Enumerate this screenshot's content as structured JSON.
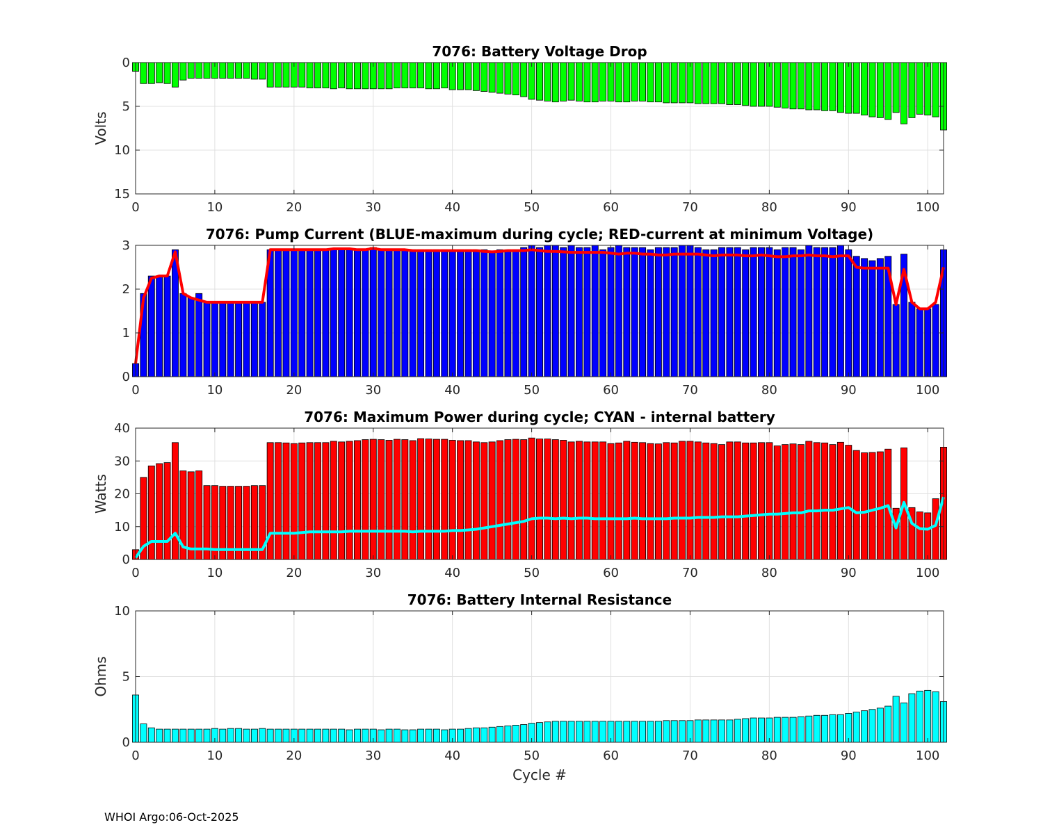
{
  "footer": "WHOI Argo:06-Oct-2025",
  "colors": {
    "green": "#00ff00",
    "blue": "#0000ff",
    "red": "#ff0000",
    "cyan": "#00ffff",
    "grid": "#e0e0e0",
    "axis": "#262626"
  },
  "chart_data": [
    {
      "type": "bar",
      "title": "7076: Battery Voltage Drop",
      "xlabel": "",
      "ylabel": "Volts",
      "xlim": [
        0,
        102
      ],
      "ylim": [
        0,
        15
      ],
      "y_reversed": true,
      "xticks": [
        0,
        10,
        20,
        30,
        40,
        50,
        60,
        70,
        80,
        90,
        100
      ],
      "yticks": [
        0,
        5,
        10,
        15
      ],
      "grid": true,
      "bar_color": "#00ff00",
      "x_start": 0,
      "values": [
        1.0,
        2.4,
        2.4,
        2.3,
        2.4,
        2.8,
        2.0,
        1.8,
        1.8,
        1.8,
        1.8,
        1.8,
        1.8,
        1.8,
        1.8,
        1.9,
        1.9,
        2.8,
        2.8,
        2.8,
        2.8,
        2.8,
        2.9,
        2.9,
        2.9,
        3.0,
        2.9,
        3.0,
        3.0,
        3.0,
        3.0,
        3.0,
        3.0,
        2.9,
        2.9,
        2.9,
        2.9,
        3.0,
        3.0,
        2.9,
        3.1,
        3.1,
        3.1,
        3.2,
        3.3,
        3.4,
        3.5,
        3.6,
        3.7,
        3.9,
        4.2,
        4.3,
        4.4,
        4.5,
        4.4,
        4.3,
        4.4,
        4.5,
        4.5,
        4.4,
        4.4,
        4.5,
        4.5,
        4.4,
        4.4,
        4.5,
        4.5,
        4.6,
        4.6,
        4.6,
        4.6,
        4.7,
        4.7,
        4.7,
        4.7,
        4.8,
        4.8,
        4.9,
        5.0,
        5.0,
        5.0,
        5.1,
        5.2,
        5.3,
        5.3,
        5.4,
        5.4,
        5.5,
        5.5,
        5.7,
        5.8,
        5.8,
        6.0,
        6.2,
        6.3,
        6.5,
        5.7,
        7.0,
        6.3,
        5.9,
        6.0,
        6.2,
        7.7
      ]
    },
    {
      "type": "bar",
      "title": "7076: Pump Current (BLUE-maximum during cycle; RED-current at minimum Voltage)",
      "xlabel": "",
      "ylabel": "",
      "xlim": [
        0,
        102
      ],
      "ylim": [
        0,
        3
      ],
      "xticks": [
        0,
        10,
        20,
        30,
        40,
        50,
        60,
        70,
        80,
        90,
        100
      ],
      "yticks": [
        0,
        1,
        2,
        3
      ],
      "grid": true,
      "bar_color": "#0000ff",
      "line_color": "#ff0000",
      "x_start": 0,
      "series": [
        {
          "values": [
            0.3,
            1.9,
            2.3,
            2.3,
            2.3,
            2.9,
            1.9,
            1.8,
            1.9,
            1.7,
            1.7,
            1.7,
            1.7,
            1.7,
            1.7,
            1.7,
            1.7,
            2.9,
            2.9,
            2.9,
            2.9,
            2.9,
            2.9,
            2.9,
            2.9,
            2.9,
            2.9,
            2.9,
            2.9,
            2.9,
            2.95,
            2.9,
            2.9,
            2.9,
            2.9,
            2.9,
            2.9,
            2.9,
            2.9,
            2.9,
            2.9,
            2.9,
            2.9,
            2.9,
            2.9,
            2.85,
            2.9,
            2.9,
            2.9,
            2.95,
            3.0,
            2.95,
            3.0,
            3.0,
            2.95,
            3.0,
            2.95,
            2.95,
            3.0,
            2.9,
            2.95,
            3.0,
            2.95,
            2.95,
            2.95,
            2.9,
            2.95,
            2.95,
            2.95,
            3.0,
            3.0,
            2.95,
            2.9,
            2.9,
            2.95,
            2.95,
            2.95,
            2.9,
            2.95,
            2.95,
            2.95,
            2.9,
            2.95,
            2.95,
            2.9,
            3.0,
            2.95,
            2.95,
            2.95,
            3.0,
            2.9,
            2.75,
            2.7,
            2.65,
            2.7,
            2.75,
            1.65,
            2.8,
            1.7,
            1.55,
            1.55,
            1.65,
            2.9
          ]
        },
        {
          "values": [
            0.3,
            1.8,
            2.25,
            2.3,
            2.3,
            2.85,
            1.9,
            1.8,
            1.75,
            1.7,
            1.7,
            1.7,
            1.7,
            1.7,
            1.7,
            1.7,
            1.7,
            2.9,
            2.9,
            2.9,
            2.9,
            2.9,
            2.9,
            2.9,
            2.9,
            2.92,
            2.92,
            2.92,
            2.9,
            2.9,
            2.93,
            2.9,
            2.9,
            2.9,
            2.9,
            2.88,
            2.88,
            2.88,
            2.88,
            2.88,
            2.88,
            2.88,
            2.88,
            2.88,
            2.86,
            2.85,
            2.86,
            2.88,
            2.88,
            2.88,
            2.9,
            2.88,
            2.86,
            2.86,
            2.85,
            2.84,
            2.84,
            2.84,
            2.84,
            2.84,
            2.82,
            2.8,
            2.82,
            2.82,
            2.8,
            2.8,
            2.78,
            2.78,
            2.8,
            2.8,
            2.8,
            2.8,
            2.78,
            2.76,
            2.78,
            2.78,
            2.78,
            2.76,
            2.76,
            2.78,
            2.76,
            2.74,
            2.74,
            2.76,
            2.76,
            2.78,
            2.76,
            2.76,
            2.74,
            2.76,
            2.76,
            2.5,
            2.48,
            2.48,
            2.48,
            2.48,
            1.65,
            2.45,
            1.7,
            1.55,
            1.55,
            1.7,
            2.5
          ]
        }
      ]
    },
    {
      "type": "bar",
      "title": "7076: Maximum Power during cycle; CYAN - internal battery",
      "xlabel": "",
      "ylabel": "Watts",
      "xlim": [
        0,
        102
      ],
      "ylim": [
        0,
        40
      ],
      "xticks": [
        0,
        10,
        20,
        30,
        40,
        50,
        60,
        70,
        80,
        90,
        100
      ],
      "yticks": [
        0,
        10,
        20,
        30,
        40
      ],
      "grid": true,
      "bar_color": "#ff0000",
      "line_color": "#00ffff",
      "x_start": 0,
      "series": [
        {
          "values": [
            3,
            25,
            28.5,
            29.2,
            29.5,
            35.6,
            27,
            26.7,
            27,
            22.5,
            22.5,
            22.3,
            22.3,
            22.3,
            22.3,
            22.5,
            22.5,
            35.6,
            35.6,
            35.5,
            35.3,
            35.5,
            35.6,
            35.6,
            35.6,
            36,
            35.8,
            36,
            36.2,
            36.5,
            36.6,
            36.5,
            36.3,
            36.6,
            36.5,
            36.2,
            36.8,
            36.7,
            36.6,
            36.6,
            36.3,
            36.2,
            36.2,
            35.8,
            35.6,
            35.8,
            36.2,
            36.5,
            36.6,
            36.5,
            37,
            36.7,
            36.7,
            36.5,
            36.3,
            35.8,
            36,
            35.8,
            35.8,
            35.8,
            35.3,
            35.5,
            36,
            35.7,
            35.6,
            35.3,
            35.2,
            35.6,
            35.5,
            36,
            36,
            35.8,
            35.5,
            35.3,
            35,
            35.8,
            35.8,
            35.5,
            35.5,
            35.6,
            35.6,
            34.6,
            35,
            35.2,
            35,
            36,
            35.6,
            35.5,
            35,
            35.7,
            34.8,
            33.2,
            32.5,
            32.6,
            32.8,
            33.6,
            15.6,
            34,
            15.8,
            14.5,
            14.2,
            18.5,
            34.2
          ]
        },
        {
          "values": [
            0.5,
            4,
            5.5,
            5.5,
            5.5,
            8,
            3.8,
            3.2,
            3.2,
            3.2,
            3,
            3,
            3,
            3,
            3,
            3,
            3,
            8,
            8,
            8,
            8,
            8.2,
            8.4,
            8.4,
            8.4,
            8.4,
            8.4,
            8.6,
            8.6,
            8.6,
            8.6,
            8.6,
            8.6,
            8.6,
            8.6,
            8.4,
            8.6,
            8.6,
            8.6,
            8.6,
            8.8,
            8.8,
            9,
            9.2,
            9.6,
            10,
            10.4,
            10.8,
            11.2,
            11.6,
            12.4,
            12.6,
            12.6,
            12.4,
            12.6,
            12.4,
            12.6,
            12.6,
            12.4,
            12.4,
            12.4,
            12.4,
            12.4,
            12.6,
            12.4,
            12.4,
            12.4,
            12.4,
            12.6,
            12.6,
            12.6,
            12.8,
            12.8,
            12.8,
            13,
            13,
            13,
            13.2,
            13.4,
            13.6,
            13.8,
            13.8,
            14,
            14.2,
            14.2,
            14.8,
            14.8,
            15,
            15,
            15.4,
            15.8,
            14.2,
            14.4,
            15,
            15.6,
            16.4,
            9.6,
            17.4,
            11,
            9.4,
            9.2,
            10.4,
            19
          ]
        }
      ]
    },
    {
      "type": "bar",
      "title": "7076: Battery Internal Resistance",
      "xlabel": "Cycle #",
      "ylabel": "Ohms",
      "xlim": [
        0,
        102
      ],
      "ylim": [
        0,
        10
      ],
      "xticks": [
        0,
        10,
        20,
        30,
        40,
        50,
        60,
        70,
        80,
        90,
        100
      ],
      "yticks": [
        0,
        5,
        10
      ],
      "grid": true,
      "bar_color": "#00ffff",
      "x_start": 0,
      "values": [
        3.6,
        1.4,
        1.1,
        1.0,
        1.0,
        1.0,
        1.0,
        1.0,
        1.0,
        1.0,
        1.05,
        1.0,
        1.05,
        1.05,
        1.0,
        1.0,
        1.05,
        1.0,
        1.0,
        1.0,
        1.0,
        1.0,
        1.0,
        1.0,
        1.0,
        1.0,
        1.0,
        0.95,
        1.0,
        1.0,
        1.0,
        0.95,
        1.0,
        1.0,
        0.95,
        0.95,
        1.0,
        1.0,
        1.0,
        0.95,
        1.0,
        1.0,
        1.05,
        1.1,
        1.1,
        1.15,
        1.2,
        1.25,
        1.3,
        1.35,
        1.45,
        1.5,
        1.55,
        1.6,
        1.6,
        1.6,
        1.6,
        1.6,
        1.6,
        1.6,
        1.6,
        1.6,
        1.6,
        1.6,
        1.6,
        1.6,
        1.6,
        1.65,
        1.65,
        1.65,
        1.65,
        1.7,
        1.7,
        1.7,
        1.7,
        1.7,
        1.75,
        1.8,
        1.85,
        1.85,
        1.85,
        1.9,
        1.9,
        1.9,
        1.95,
        2.0,
        2.05,
        2.05,
        2.1,
        2.1,
        2.2,
        2.3,
        2.4,
        2.5,
        2.6,
        2.75,
        3.5,
        3.0,
        3.7,
        3.9,
        3.95,
        3.85,
        3.1
      ]
    }
  ]
}
